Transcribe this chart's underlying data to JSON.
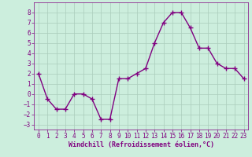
{
  "x": [
    0,
    1,
    2,
    3,
    4,
    5,
    6,
    7,
    8,
    9,
    10,
    11,
    12,
    13,
    14,
    15,
    16,
    17,
    18,
    19,
    20,
    21,
    22,
    23
  ],
  "y": [
    2,
    -0.5,
    -1.5,
    -1.5,
    0,
    0,
    -0.5,
    -2.5,
    -2.5,
    1.5,
    1.5,
    2,
    2.5,
    5,
    7,
    8,
    8,
    6.5,
    4.5,
    4.5,
    3,
    2.5,
    2.5,
    1.5
  ],
  "line_color": "#800080",
  "marker": "+",
  "marker_size": 4,
  "marker_linewidth": 1.0,
  "xlim": [
    -0.5,
    23.5
  ],
  "ylim": [
    -3.5,
    9
  ],
  "yticks": [
    -3,
    -2,
    -1,
    0,
    1,
    2,
    3,
    4,
    5,
    6,
    7,
    8
  ],
  "xticks": [
    0,
    1,
    2,
    3,
    4,
    5,
    6,
    7,
    8,
    9,
    10,
    11,
    12,
    13,
    14,
    15,
    16,
    17,
    18,
    19,
    20,
    21,
    22,
    23
  ],
  "xlabel": "Windchill (Refroidissement éolien,°C)",
  "background_color": "#cceedd",
  "grid_color": "#aaccbb",
  "label_color": "#800080",
  "tick_color": "#800080",
  "font_size": 5.5,
  "xlabel_fontsize": 6.0,
  "linewidth": 1.0
}
